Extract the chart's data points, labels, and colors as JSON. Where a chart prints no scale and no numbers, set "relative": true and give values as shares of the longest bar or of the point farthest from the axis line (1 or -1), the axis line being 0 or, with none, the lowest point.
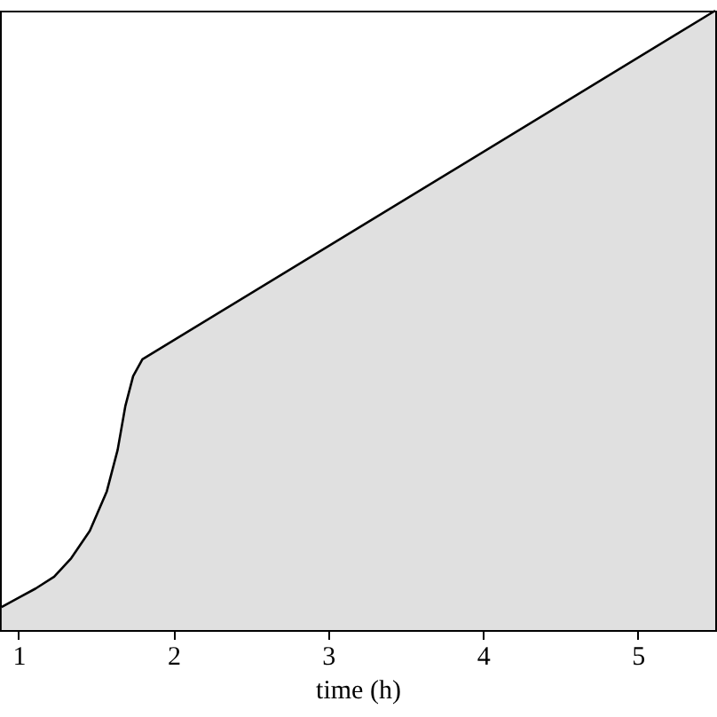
{
  "chart_data": {
    "type": "area",
    "xlabel": "time (h)",
    "relative": true,
    "xlim": [
      0.88,
      5.5
    ],
    "xticks": [
      1,
      2,
      3,
      4,
      5
    ],
    "tick_labels": "x",
    "grid": false,
    "series": [
      {
        "color": "#d3d3d3",
        "x": [
          0.89,
          1.0,
          1.11,
          1.23,
          1.34,
          1.46,
          1.57,
          1.64,
          1.69,
          1.74,
          1.8,
          5.5
        ],
        "values": [
          0.037,
          0.052,
          0.067,
          0.086,
          0.116,
          0.16,
          0.224,
          0.291,
          0.362,
          0.41,
          0.437,
          1
        ]
      }
    ]
  }
}
